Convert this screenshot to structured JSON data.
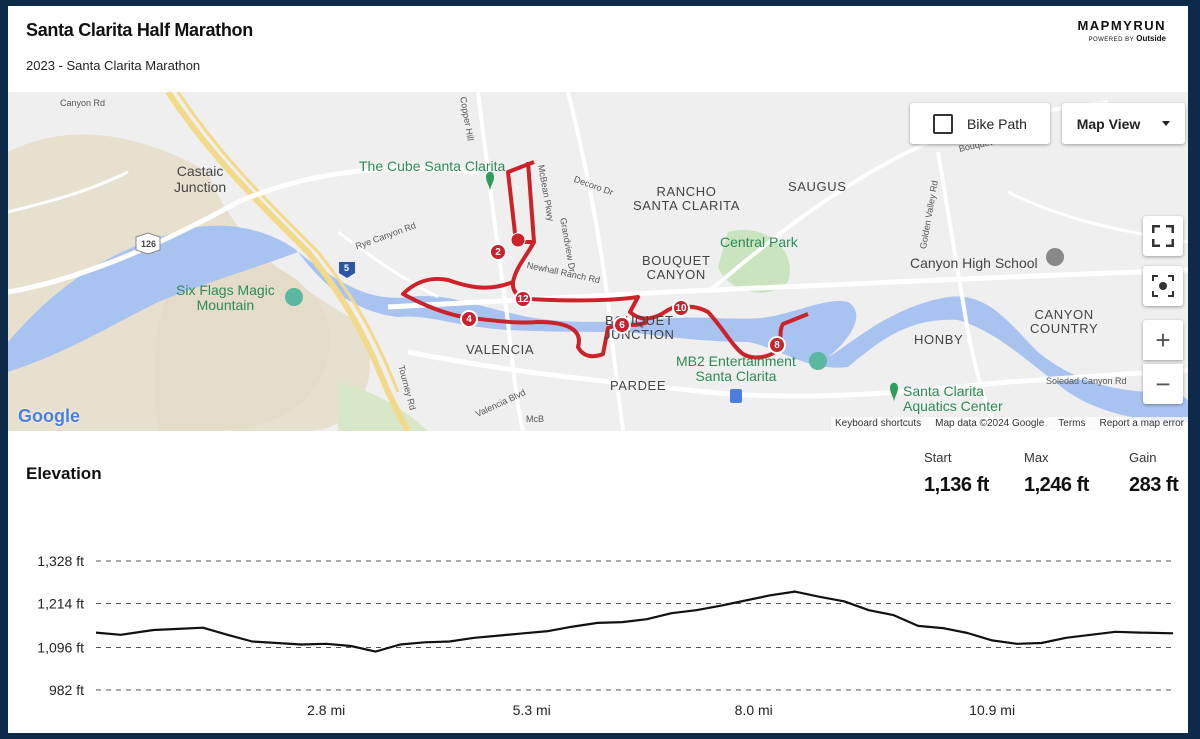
{
  "header": {
    "title": "Santa Clarita Half Marathon",
    "subtitle": "2023 - Santa Clarita Marathon",
    "brand": "MAPMYRUN",
    "brand_sub": "POWERED BY",
    "brand_partner": "Outside"
  },
  "map": {
    "controls": {
      "bike_path_label": "Bike Path",
      "map_view_label": "Map View",
      "zoom_in": "+",
      "zoom_out": "−"
    },
    "labels": {
      "castaic": "Castaic\nJunction",
      "six_flags": "Six Flags Magic\nMountain",
      "cube": "The Cube Santa Clarita",
      "rancho": "RANCHO\nSANTA CLARITA",
      "saugus": "SAUGUS",
      "central_park": "Central Park",
      "bouquet_canyon": "BOUQUET\nCANYON",
      "valencia": "VALENCIA",
      "bouquet_jct": "BOUQUET\nJUNCTION",
      "mb2": "MB2 Entertainment\nSanta Clarita",
      "pardee": "PARDEE",
      "canyon_high": "Canyon High School",
      "canyon_country": "CANYON\nCOUNTRY",
      "honby": "HONBY",
      "aquatics": "Santa Clarita\nAquatics Center",
      "road_canyon": "Canyon Rd",
      "road_copper": "Copper Hill",
      "road_mcbean": "McBean Pkwy",
      "road_decoro": "Decoro Dr",
      "road_grandview": "Grandview Dr",
      "road_rye": "Rye Canyon Rd",
      "road_newhall": "Newhall Ranch Rd",
      "road_tourney": "Tourney Rd",
      "road_valencia": "Valencia Blvd",
      "road_golden": "Golden Valley Rd",
      "road_soledad": "Soledad Canyon Rd",
      "road_mcb": "McB",
      "road_bouquet": "Bouquet Canyon Rd",
      "hwy_126": "126",
      "hwy_5": "5"
    },
    "route_markers": [
      "2",
      "4",
      "6",
      "8",
      "10",
      "12"
    ],
    "google_logo": "Google",
    "attribution": [
      "Keyboard shortcuts",
      "Map data ©2024 Google",
      "Terms",
      "Report a map error"
    ]
  },
  "elevation": {
    "title": "Elevation",
    "stats": [
      {
        "label": "Start",
        "value": "1,136 ft"
      },
      {
        "label": "Max",
        "value": "1,246 ft"
      },
      {
        "label": "Gain",
        "value": "283 ft"
      }
    ]
  },
  "chart_data": {
    "type": "line",
    "title": "Elevation",
    "xlabel": "",
    "ylabel": "",
    "ylim": [
      982,
      1328
    ],
    "xlim": [
      0,
      13.1
    ],
    "y_ticks": [
      1328,
      1214,
      1096,
      982
    ],
    "y_tick_labels": [
      "1,328 ft",
      "1,214 ft",
      "1,096 ft",
      "982 ft"
    ],
    "x_ticks": [
      2.8,
      5.3,
      8.0,
      10.9
    ],
    "x_tick_labels": [
      "2.8 mi",
      "5.3 mi",
      "8.0 mi",
      "10.9 mi"
    ],
    "grid": true,
    "series": [
      {
        "x": [
          0,
          0.3,
          0.7,
          1.0,
          1.3,
          1.6,
          1.9,
          2.2,
          2.5,
          2.8,
          3.1,
          3.4,
          3.7,
          4.0,
          4.3,
          4.6,
          4.9,
          5.2,
          5.5,
          5.8,
          6.1,
          6.4,
          6.7,
          7.0,
          7.3,
          7.6,
          7.9,
          8.2,
          8.5,
          8.8,
          9.1,
          9.4,
          9.7,
          10.0,
          10.3,
          10.6,
          10.9,
          11.2,
          11.5,
          11.8,
          12.1,
          12.4,
          12.7,
          13.1
        ],
        "y": [
          1136,
          1130,
          1143,
          1146,
          1149,
          1130,
          1112,
          1108,
          1104,
          1106,
          1100,
          1085,
          1104,
          1110,
          1112,
          1122,
          1128,
          1134,
          1140,
          1152,
          1162,
          1164,
          1172,
          1188,
          1196,
          1208,
          1222,
          1236,
          1246,
          1232,
          1220,
          1196,
          1183,
          1154,
          1148,
          1135,
          1115,
          1106,
          1108,
          1122,
          1130,
          1138,
          1136,
          1134
        ]
      }
    ]
  }
}
